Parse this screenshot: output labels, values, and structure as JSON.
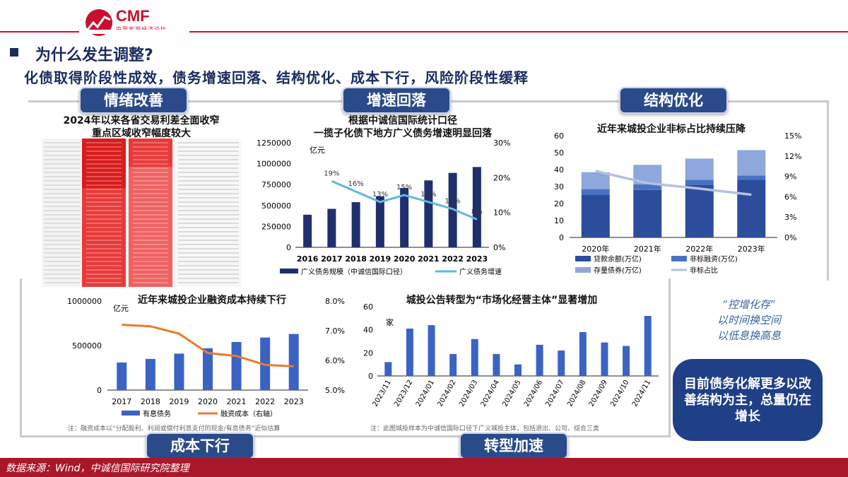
{
  "header": {
    "logo_text": "CMF",
    "logo_subtitle": "中国宏观经济论坛",
    "question": "为什么发生调整?",
    "subtitle": "化债取得阶段性成效，债务增速回落、结构优化、成本下行，风险阶段性缓释"
  },
  "tags": {
    "sentiment": "情绪改善",
    "growth": "增速回落",
    "structure": "结构优化",
    "cost": "成本下行",
    "transition": "转型加速"
  },
  "spread_table": {
    "title_line1": "2024年以来各省交易利差全面收窄",
    "title_line2": "重点区域收窄幅度较大"
  },
  "chart_data": [
    {
      "id": "growth",
      "type": "bar",
      "title_line1": "根据中诚信国际统计口径",
      "title_line2": "一揽子化债下地方广义债务增速明显回落",
      "categories": [
        "2016",
        "2017",
        "2018",
        "2019",
        "2020",
        "2021",
        "2022",
        "2023"
      ],
      "y_unit": "亿元",
      "ylim": [
        0,
        1250000
      ],
      "y_ticks": [
        "0",
        "250000",
        "500000",
        "750000",
        "1000000",
        "1250000"
      ],
      "y2lim": [
        0,
        30
      ],
      "y2_ticks": [
        "0%",
        "10%",
        "20%",
        "30%"
      ],
      "series": [
        {
          "name": "广义债务规模（中诚信国际口径）",
          "color": "#1f2f6e",
          "values": [
            390000,
            460000,
            540000,
            610000,
            710000,
            800000,
            890000,
            960000
          ]
        },
        {
          "name": "广义债务增速",
          "color": "#5fb7e0",
          "type": "line",
          "x": [
            "2017",
            "2018",
            "2019",
            "2020",
            "2021",
            "2022",
            "2023"
          ],
          "values": [
            19,
            16,
            13,
            15,
            13,
            11,
            8
          ],
          "labels": [
            "19%",
            "16%",
            "13%",
            "15%",
            "13%",
            "11%",
            "8%"
          ]
        }
      ]
    },
    {
      "id": "structure",
      "type": "bar",
      "title": "近年来城投企业非标占比持续压降",
      "categories": [
        "2020年",
        "2021年",
        "2022年",
        "2023年"
      ],
      "ylim": [
        0,
        60
      ],
      "y_ticks": [
        "0",
        "10",
        "20",
        "30",
        "40",
        "50",
        "60"
      ],
      "y2lim": [
        0,
        15
      ],
      "y2_ticks": [
        "0%",
        "3%",
        "6%",
        "9%",
        "12%",
        "15%"
      ],
      "series": [
        {
          "name": "贷款余额(万亿)",
          "color": "#2c4c9c",
          "values": [
            25,
            28,
            31,
            34
          ]
        },
        {
          "name": "非标融资(万亿)",
          "color": "#4a72c4",
          "values": [
            3.5,
            3.3,
            3,
            2.5
          ]
        },
        {
          "name": "存量债券(万亿)",
          "color": "#8ea7dc",
          "values": [
            10,
            11.5,
            12.5,
            15
          ]
        },
        {
          "name": "非标占比",
          "color": "#b5c1e0",
          "type": "line",
          "values": [
            9.8,
            8.0,
            7.2,
            6.3
          ]
        }
      ]
    },
    {
      "id": "cost",
      "type": "bar",
      "title": "近年来城投企业融资成本持续下行",
      "categories": [
        "2017",
        "2018",
        "2019",
        "2020",
        "2021",
        "2022",
        "2023"
      ],
      "y_unit": "亿元",
      "ylim": [
        0,
        1000000
      ],
      "y_ticks": [
        "0",
        "500000",
        "1000000"
      ],
      "y2lim": [
        5,
        8
      ],
      "y2_ticks": [
        "5.0%",
        "6.0%",
        "7.0%",
        "8.0%"
      ],
      "series": [
        {
          "name": "有息债务",
          "color": "#3a63c4",
          "values": [
            310000,
            350000,
            410000,
            470000,
            540000,
            590000,
            630000
          ]
        },
        {
          "name": "融资成本（右轴）",
          "color": "#ec7a2a",
          "type": "line",
          "values": [
            7.2,
            7.15,
            6.9,
            6.25,
            6.15,
            5.85,
            5.8
          ]
        }
      ],
      "note": "注：融资成本以“分配股利、利润或偿付利息支付的现金/有息债务”近似估算"
    },
    {
      "id": "transition",
      "type": "bar",
      "title": "城投公告转型为“市场化经营主体”显著增加",
      "categories": [
        "2023/11",
        "2023/12",
        "2024/01",
        "2024/02",
        "2024/03",
        "2024/04",
        "2024/05",
        "2024/06",
        "2024/07",
        "2024/08",
        "2024/09",
        "2024/10",
        "2024/11"
      ],
      "y_unit": "家",
      "ylim": [
        0,
        60
      ],
      "y_ticks": [
        "0",
        "20",
        "40",
        "60"
      ],
      "series": [
        {
          "name": "",
          "color": "#3a63c4",
          "values": [
            12,
            41,
            44,
            19,
            32,
            19,
            10,
            27,
            22,
            38,
            29,
            26,
            52
          ]
        }
      ],
      "note": "注：此图城投样本为中诚信国际口径下广义城投主体，包括退出、公司、综合三类"
    }
  ],
  "quote": {
    "line1": "“控增化存”",
    "line2": "以时间换空间",
    "line3": "以低息换高息"
  },
  "callout": "目前债务化解更多以改善结构为主，总量仍在增长",
  "footer": "数据来源：Wind，中诚信国际研究院整理",
  "colors": {
    "brand_red": "#c8102e",
    "navy": "#1a2b5e",
    "tag_blue": "#2a4a8a"
  }
}
